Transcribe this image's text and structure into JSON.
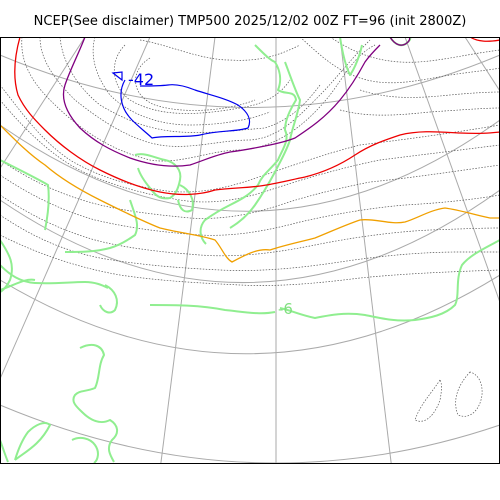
{
  "title": "NCEP(See disclaimer) TMP500 2025/12/02 00Z FT=96 (init 2800Z)",
  "contour_labels": {
    "minus42": "-42",
    "minus6": "-6"
  },
  "colors": {
    "contour_minus42": "#0000ee",
    "contour_purple": "#800080",
    "contour_red": "#ee0000",
    "contour_orange": "#f0a000",
    "contour_green_label": "#80e080",
    "coastline": "#90ee90",
    "graticule": "#aaaaaa",
    "minor_contours": "#555555",
    "frame": "#000000"
  }
}
